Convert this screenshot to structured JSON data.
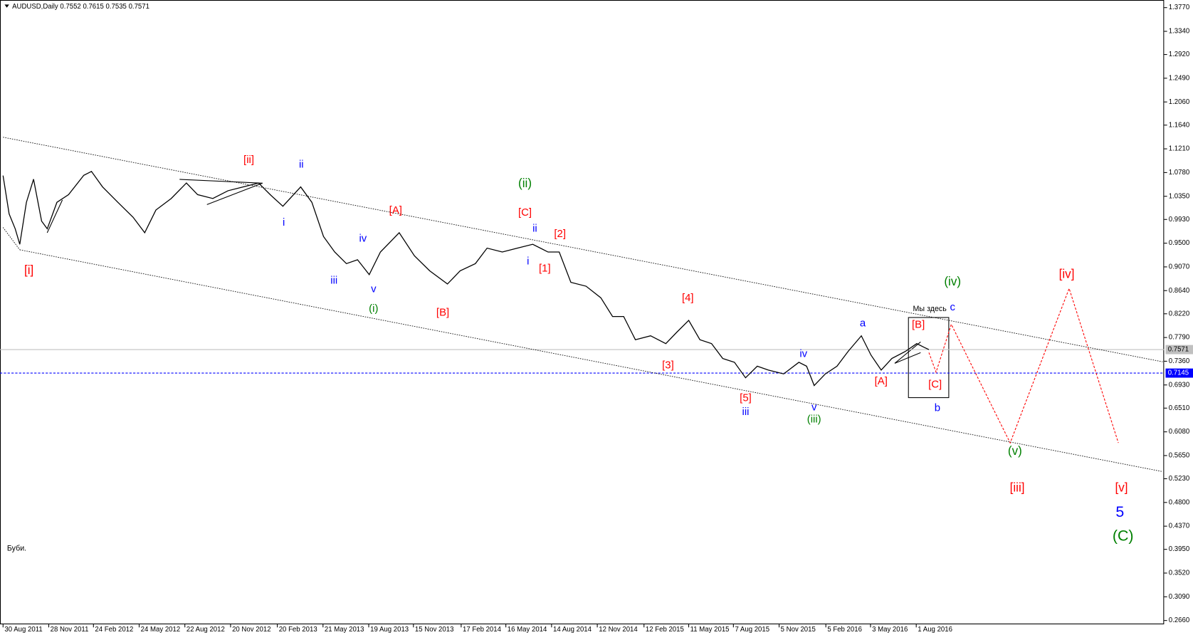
{
  "chart_data": {
    "type": "line",
    "title": "AUDUSD,Daily  0.7552 0.7615 0.7535 0.7571",
    "x": [
      "2011-08-30",
      "2011-09-11",
      "2011-09-23",
      "2011-10-02",
      "2011-10-15",
      "2011-10-29",
      "2011-11-14",
      "2011-11-25",
      "2011-12-14",
      "2012-01-06",
      "2012-02-05",
      "2012-02-20",
      "2012-03-13",
      "2012-04-12",
      "2012-05-12",
      "2012-06-04",
      "2012-06-26",
      "2012-07-26",
      "2012-08-25",
      "2012-09-16",
      "2012-10-16",
      "2012-11-15",
      "2012-12-15",
      "2013-01-14",
      "2013-02-06",
      "2013-03-03",
      "2013-04-07",
      "2013-04-29",
      "2013-05-22",
      "2013-06-13",
      "2013-07-06",
      "2013-07-28",
      "2013-08-20",
      "2013-09-11",
      "2013-10-18",
      "2013-11-17",
      "2013-12-17",
      "2014-01-21",
      "2014-02-15",
      "2014-03-17",
      "2014-04-09",
      "2014-05-09",
      "2014-06-08",
      "2014-07-08",
      "2014-08-07",
      "2014-08-29",
      "2014-09-21",
      "2014-10-21",
      "2014-11-19",
      "2014-12-12",
      "2015-01-03",
      "2015-01-26",
      "2015-02-25",
      "2015-03-27",
      "2015-04-18",
      "2015-05-11",
      "2015-06-02",
      "2015-06-25",
      "2015-07-17",
      "2015-08-09",
      "2015-08-31",
      "2015-09-23",
      "2015-10-15",
      "2015-11-14",
      "2015-12-14",
      "2015-12-29",
      "2016-01-13",
      "2016-02-04",
      "2016-02-27",
      "2016-03-20",
      "2016-04-15",
      "2016-05-04",
      "2016-05-24",
      "2016-06-14",
      "2016-07-11",
      "2016-08-02",
      "2016-08-17",
      "2016-08-26"
    ],
    "series": [
      {
        "color": "#000000",
        "values": [
          1.0726,
          1.003,
          0.976,
          0.948,
          1.024,
          1.066,
          0.99,
          0.976,
          1.024,
          1.038,
          1.073,
          1.08,
          1.052,
          1.024,
          0.997,
          0.969,
          1.01,
          1.031,
          1.059,
          1.038,
          1.031,
          1.045,
          1.052,
          1.059,
          1.038,
          1.017,
          1.052,
          1.024,
          0.962,
          0.934,
          0.913,
          0.92,
          0.893,
          0.934,
          0.969,
          0.927,
          0.9,
          0.876,
          0.9,
          0.913,
          0.941,
          0.934,
          0.941,
          0.948,
          0.934,
          0.934,
          0.879,
          0.872,
          0.851,
          0.817,
          0.817,
          0.775,
          0.782,
          0.768,
          0.789,
          0.81,
          0.775,
          0.768,
          0.741,
          0.734,
          0.706,
          0.727,
          0.72,
          0.713,
          0.734,
          0.727,
          0.692,
          0.713,
          0.727,
          0.754,
          0.782,
          0.747,
          0.72,
          0.741,
          0.754,
          0.768,
          0.761,
          0.7571
        ]
      }
    ],
    "xlim": [
      "2011-08-24",
      "2017-12-02"
    ],
    "xticks": [
      {
        "value": "2011-08-30",
        "label": "30 Aug 2011"
      },
      {
        "value": "2011-11-28",
        "label": "28 Nov 2011"
      },
      {
        "value": "2012-02-24",
        "label": "24 Feb 2012"
      },
      {
        "value": "2012-05-24",
        "label": "24 May 2012"
      },
      {
        "value": "2012-08-22",
        "label": "22 Aug 2012"
      },
      {
        "value": "2012-11-20",
        "label": "20 Nov 2012"
      },
      {
        "value": "2013-02-20",
        "label": "20 Feb 2013"
      },
      {
        "value": "2013-05-21",
        "label": "21 May 2013"
      },
      {
        "value": "2013-08-19",
        "label": "19 Aug 2013"
      },
      {
        "value": "2013-11-15",
        "label": "15 Nov 2013"
      },
      {
        "value": "2014-02-17",
        "label": "17 Feb 2014"
      },
      {
        "value": "2014-05-16",
        "label": "16 May 2014"
      },
      {
        "value": "2014-08-14",
        "label": "14 Aug 2014"
      },
      {
        "value": "2014-11-12",
        "label": "12 Nov 2014"
      },
      {
        "value": "2015-02-12",
        "label": "12 Feb 2015"
      },
      {
        "value": "2015-05-11",
        "label": "11 May 2015"
      },
      {
        "value": "2015-08-07",
        "label": "7 Aug 2015"
      },
      {
        "value": "2015-11-05",
        "label": "5 Nov 2015"
      },
      {
        "value": "2016-02-05",
        "label": "5 Feb 2016"
      },
      {
        "value": "2016-05-03",
        "label": "3 May 2016"
      },
      {
        "value": "2016-08-01",
        "label": "1 Aug 2016"
      }
    ],
    "ylim": [
      0.2591,
      1.3908
    ],
    "yticks": [
      {
        "value": 1.377,
        "label": "1.3770"
      },
      {
        "value": 1.334,
        "label": "1.3340"
      },
      {
        "value": 1.292,
        "label": "1.2920"
      },
      {
        "value": 1.249,
        "label": "1.2490"
      },
      {
        "value": 1.206,
        "label": "1.2060"
      },
      {
        "value": 1.164,
        "label": "1.1640"
      },
      {
        "value": 1.121,
        "label": "1.1210"
      },
      {
        "value": 1.078,
        "label": "1.0780"
      },
      {
        "value": 1.035,
        "label": "1.0350"
      },
      {
        "value": 0.993,
        "label": "0.9930"
      },
      {
        "value": 0.95,
        "label": "0.9500"
      },
      {
        "value": 0.907,
        "label": "0.9070"
      },
      {
        "value": 0.864,
        "label": "0.8640"
      },
      {
        "value": 0.822,
        "label": "0.8220"
      },
      {
        "value": 0.779,
        "label": "0.7790"
      },
      {
        "value": 0.736,
        "label": "0.7360"
      },
      {
        "value": 0.693,
        "label": "0.6930"
      },
      {
        "value": 0.651,
        "label": "0.6510"
      },
      {
        "value": 0.608,
        "label": "0.6080"
      },
      {
        "value": 0.565,
        "label": "0.5650"
      },
      {
        "value": 0.523,
        "label": "0.5230"
      },
      {
        "value": 0.48,
        "label": "0.4800"
      },
      {
        "value": 0.437,
        "label": "0.4370"
      },
      {
        "value": 0.395,
        "label": "0.3950"
      },
      {
        "value": 0.352,
        "label": "0.3520"
      },
      {
        "value": 0.309,
        "label": "0.3090"
      },
      {
        "value": 0.266,
        "label": "0.2660"
      }
    ],
    "price_lines": [
      {
        "value": 0.7571,
        "color": "#c0c0c0"
      },
      {
        "value": 0.7145,
        "color": "#0000ff"
      }
    ],
    "trendlines": [
      {
        "x": [
          "2011-08-30",
          "2017-11-29"
        ],
        "values": [
          1.142,
          0.735
        ]
      },
      {
        "x": [
          "2011-08-30",
          "2011-10-02"
        ],
        "values": [
          0.9785,
          0.938
        ]
      },
      {
        "x": [
          "2011-10-02",
          "2017-11-29"
        ],
        "values": [
          0.938,
          0.536
        ]
      }
    ],
    "forecast": {
      "color": "#ff0000",
      "x": [
        "2016-08-26",
        "2016-09-09",
        "2016-10-09",
        "2017-02-02",
        "2017-05-29",
        "2017-09-03"
      ],
      "values": [
        0.7516,
        0.716,
        0.803,
        0.588,
        0.868,
        0.588
      ]
    },
    "annotations": [
      {
        "text": "[i]",
        "color": "#ff0000"
      },
      {
        "text": "[ii]",
        "color": "#ff0000"
      },
      {
        "text": "ii",
        "color": "#0000ff"
      },
      {
        "text": "i",
        "color": "#0000ff"
      },
      {
        "text": "iii",
        "color": "#0000ff"
      },
      {
        "text": "iv",
        "color": "#0000ff"
      },
      {
        "text": "v",
        "color": "#0000ff"
      },
      {
        "text": "(i)",
        "color": "#008000"
      },
      {
        "text": "[A]",
        "color": "#ff0000"
      },
      {
        "text": "[B]",
        "color": "#ff0000"
      },
      {
        "text": "(ii)",
        "color": "#008000"
      },
      {
        "text": "[C]",
        "color": "#ff0000"
      },
      {
        "text": "ii",
        "color": "#0000ff"
      },
      {
        "text": "[2]",
        "color": "#ff0000"
      },
      {
        "text": "i",
        "color": "#0000ff"
      },
      {
        "text": "[1]",
        "color": "#ff0000"
      },
      {
        "text": "[4]",
        "color": "#ff0000"
      },
      {
        "text": "[3]",
        "color": "#ff0000"
      },
      {
        "text": "[5]",
        "color": "#ff0000"
      },
      {
        "text": "iii",
        "color": "#0000ff"
      },
      {
        "text": "iv",
        "color": "#0000ff"
      },
      {
        "text": "v",
        "color": "#0000ff"
      },
      {
        "text": "(iii)",
        "color": "#008000"
      },
      {
        "text": "a",
        "color": "#0000ff"
      },
      {
        "text": "[A]",
        "color": "#ff0000"
      },
      {
        "text": "[B]",
        "color": "#ff0000"
      },
      {
        "text": "Мы здесь",
        "color": "#000000"
      },
      {
        "text": "c",
        "color": "#0000ff"
      },
      {
        "text": "[C]",
        "color": "#ff0000"
      },
      {
        "text": "b",
        "color": "#0000ff"
      },
      {
        "text": "(iv)",
        "color": "#008000"
      },
      {
        "text": "(v)",
        "color": "#008000"
      },
      {
        "text": "[iii]",
        "color": "#ff0000"
      },
      {
        "text": "[iv]",
        "color": "#ff0000"
      },
      {
        "text": "[v]",
        "color": "#ff0000"
      },
      {
        "text": "5",
        "color": "#0000ff"
      },
      {
        "text": "(C)",
        "color": "#008000"
      },
      {
        "text": "Буби.",
        "color": "#000000"
      }
    ]
  }
}
